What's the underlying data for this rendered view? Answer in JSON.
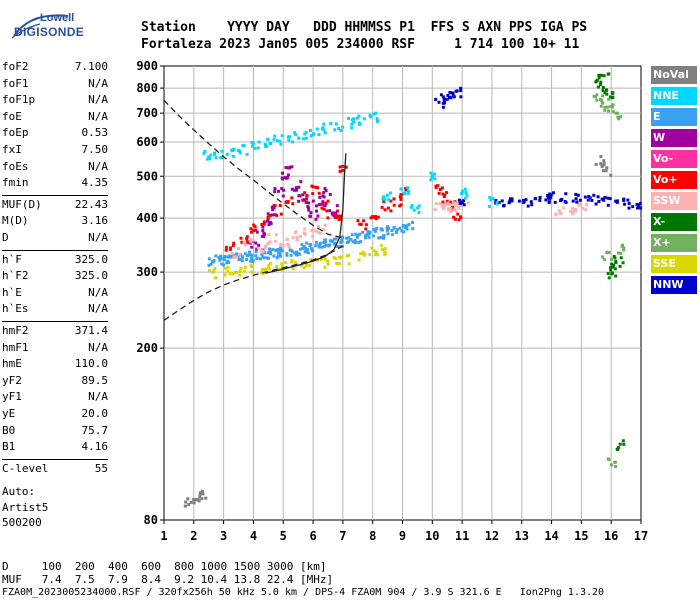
{
  "logo": {
    "top": "Lowell",
    "main": "DIGISONDE"
  },
  "header": {
    "row1": "Station    YYYY DAY   DDD HHMMSS P1  FFS S AXN PPS IGA PS",
    "row2": "Fortaleza 2023 Jan05 005 234000 RSF     1 714 100 10+ 11"
  },
  "parameters": [
    {
      "name": "foF2",
      "value": "7.100"
    },
    {
      "name": "foF1",
      "value": "N/A"
    },
    {
      "name": "foF1p",
      "value": "N/A"
    },
    {
      "name": "foE",
      "value": "N/A"
    },
    {
      "name": "foEp",
      "value": "0.53"
    },
    {
      "name": "fxI",
      "value": "7.50"
    },
    {
      "name": "foEs",
      "value": "N/A"
    },
    {
      "name": "fmin",
      "value": "4.35"
    },
    {
      "name": "MUF(D)",
      "value": "22.43"
    },
    {
      "name": "M(D)",
      "value": "3.16"
    },
    {
      "name": "D",
      "value": "N/A"
    },
    {
      "name": "h`F",
      "value": "325.0"
    },
    {
      "name": "h`F2",
      "value": "325.0"
    },
    {
      "name": "h`E",
      "value": "N/A"
    },
    {
      "name": "h`Es",
      "value": "N/A"
    },
    {
      "name": "hmF2",
      "value": "371.4"
    },
    {
      "name": "hmF1",
      "value": "N/A"
    },
    {
      "name": "hmE",
      "value": "110.0"
    },
    {
      "name": "yF2",
      "value": "89.5"
    },
    {
      "name": "yF1",
      "value": "N/A"
    },
    {
      "name": "yE",
      "value": "20.0"
    },
    {
      "name": "B0",
      "value": "75.7"
    },
    {
      "name": "B1",
      "value": "4.16"
    },
    {
      "name": "C-level",
      "value": "55"
    }
  ],
  "autoscaling": {
    "line1": "Auto:",
    "line2": "Artist5",
    "line3": "500200"
  },
  "legend": [
    {
      "label": "NoVal",
      "color": "#808080"
    },
    {
      "label": "NNE",
      "color": "#00d8ff"
    },
    {
      "label": "E",
      "color": "#3aa0f0"
    },
    {
      "label": "W",
      "color": "#a000a0"
    },
    {
      "label": "Vo-",
      "color": "#ff30a0"
    },
    {
      "label": "Vo+",
      "color": "#ff0000"
    },
    {
      "label": "SSW",
      "color": "#ffb0b0"
    },
    {
      "label": "X-",
      "color": "#007800"
    },
    {
      "label": "X+",
      "color": "#70b060"
    },
    {
      "label": "SSE",
      "color": "#d8d800"
    },
    {
      "label": "NNW",
      "color": "#0000c8"
    }
  ],
  "footer": {
    "row1": "D     100  200  400  600  800 1000 1500 3000 [km]",
    "row2": "MUF   7.4  7.5  7.9  8.4  9.2 10.4 13.8 22.4 [MHz]",
    "row3": "FZA0M_2023005234000.RSF / 320fx256h 50 kHz 5.0 km / DPS-4 FZA0M 904 / 3.9 S 321.6 E   Ion2Png 1.3.20"
  },
  "chart_data": {
    "type": "scatter",
    "xlim": [
      1,
      17
    ],
    "ylim": [
      80,
      900
    ],
    "x_ticks": [
      1,
      2,
      3,
      4,
      5,
      6,
      7,
      8,
      9,
      10,
      11,
      12,
      13,
      14,
      15,
      16,
      17
    ],
    "y_ticks": [
      80,
      200,
      300,
      400,
      500,
      600,
      700,
      800,
      900
    ],
    "grid": true,
    "y_scale": "log",
    "legend_position": "right",
    "curves": [
      {
        "style": "dashed",
        "points": [
          [
            1,
            750
          ],
          [
            1.5,
            690
          ],
          [
            2,
            640
          ],
          [
            2.5,
            595
          ],
          [
            3,
            555
          ],
          [
            3.5,
            520
          ],
          [
            4,
            490
          ],
          [
            4.5,
            460
          ],
          [
            5,
            432
          ],
          [
            5.5,
            407
          ],
          [
            6,
            385
          ],
          [
            6.5,
            367
          ],
          [
            7,
            360
          ]
        ]
      },
      {
        "style": "dashed",
        "points": [
          [
            1,
            232
          ],
          [
            1.5,
            245
          ],
          [
            2,
            258
          ],
          [
            2.5,
            270
          ],
          [
            3,
            280
          ],
          [
            3.5,
            288
          ],
          [
            4,
            295
          ],
          [
            4.5,
            301
          ],
          [
            5,
            307
          ],
          [
            5.5,
            313
          ],
          [
            6,
            320
          ],
          [
            6.5,
            330
          ],
          [
            7,
            345
          ]
        ]
      },
      {
        "style": "solid",
        "points": [
          [
            4.4,
            298
          ],
          [
            5,
            305
          ],
          [
            5.5,
            311
          ],
          [
            6,
            318
          ],
          [
            6.4,
            326
          ],
          [
            6.7,
            338
          ],
          [
            6.9,
            362
          ],
          [
            7,
            420
          ],
          [
            7.05,
            500
          ],
          [
            7.1,
            565
          ]
        ]
      }
    ],
    "traces": [
      {
        "color": "#3aa0f0",
        "x": [
          2.6,
          2.8,
          3.0,
          3.2,
          3.4,
          3.6,
          3.8,
          4.0,
          4.2,
          4.4,
          4.6,
          4.8,
          5.0,
          5.2,
          5.4,
          5.6,
          5.8,
          6.0,
          6.2,
          6.4,
          6.6,
          6.8,
          7.0,
          7.2,
          7.4,
          7.6,
          7.8,
          8.0,
          8.2,
          8.4,
          8.6,
          8.8,
          9.0,
          9.2
        ],
        "y": [
          320,
          322,
          324,
          325,
          326,
          327,
          328,
          329,
          331,
          332,
          333,
          334,
          336,
          338,
          340,
          342,
          344,
          346,
          348,
          350,
          352,
          355,
          358,
          360,
          362,
          365,
          367,
          370,
          372,
          375,
          378,
          380,
          382,
          385
        ]
      },
      {
        "color": "#ff0000",
        "x": [
          3.2,
          3.6,
          4.0,
          4.4,
          4.8,
          5.2,
          5.6,
          6.0,
          6.3,
          6.6,
          6.9,
          7.0,
          7.6,
          8.0,
          8.4,
          8.8,
          9.0,
          10.2,
          10.4,
          10.6,
          10.8
        ],
        "y": [
          345,
          360,
          380,
          400,
          420,
          440,
          450,
          470,
          430,
          410,
          400,
          520,
          390,
          410,
          430,
          440,
          460,
          470,
          450,
          430,
          410
        ]
      },
      {
        "color": "#a000a0",
        "x": [
          4.0,
          4.2,
          4.4,
          4.6,
          4.8,
          5.0,
          5.2,
          5.4,
          5.6,
          5.8,
          6.0,
          6.2,
          6.4,
          6.6
        ],
        "y": [
          350,
          370,
          390,
          420,
          460,
          500,
          520,
          480,
          450,
          430,
          410,
          440,
          460,
          420
        ]
      },
      {
        "color": "#ffb0b0",
        "x": [
          3.4,
          3.8,
          4.2,
          4.6,
          5.0,
          5.4,
          5.8,
          6.2,
          10.2,
          10.4,
          10.6,
          10.8,
          11.0,
          14.2,
          14.6,
          15.0
        ],
        "y": [
          335,
          350,
          345,
          360,
          355,
          365,
          372,
          380,
          430,
          428,
          425,
          430,
          432,
          420,
          418,
          425
        ]
      },
      {
        "color": "#d8d800",
        "x": [
          2.6,
          3.0,
          3.4,
          3.8,
          4.2,
          4.6,
          5.0,
          5.4,
          5.8,
          6.2,
          6.6,
          7.0,
          7.6,
          8.0,
          8.4
        ],
        "y": [
          300,
          302,
          304,
          306,
          308,
          310,
          312,
          314,
          316,
          318,
          320,
          322,
          330,
          335,
          340
        ]
      },
      {
        "color": "#0000c8",
        "x": [
          10.2,
          10.4,
          10.6,
          10.8,
          11.0,
          12.2,
          12.6,
          13.0,
          13.4,
          13.8,
          14.0,
          14.4,
          14.8,
          15.2,
          15.6,
          16.0,
          16.4,
          16.8
        ],
        "y": [
          740,
          760,
          775,
          790,
          440,
          435,
          438,
          440,
          442,
          445,
          450,
          448,
          446,
          444,
          440,
          438,
          436,
          434
        ]
      },
      {
        "color": "#00d8ff",
        "x": [
          2.4,
          2.8,
          3.2,
          3.6,
          4.0,
          4.4,
          4.8,
          5.2,
          5.6,
          6.0,
          6.4,
          6.8,
          7.2,
          7.6,
          8.0,
          8.4,
          9.0,
          9.4,
          10.0,
          11.0,
          12.0
        ],
        "y": [
          560,
          565,
          575,
          580,
          590,
          600,
          610,
          620,
          630,
          640,
          650,
          660,
          670,
          680,
          690,
          450,
          470,
          420,
          500,
          460,
          440
        ]
      },
      {
        "color": "#007800",
        "x": [
          15.6,
          15.8,
          15.9,
          16.0,
          16.1,
          16.2,
          15.7,
          16.3
        ],
        "y": [
          820,
          800,
          780,
          300,
          310,
          320,
          860,
          120
        ]
      },
      {
        "color": "#70b060",
        "x": [
          15.5,
          15.7,
          15.9,
          16.1,
          16.3,
          15.8,
          16.0
        ],
        "y": [
          760,
          740,
          720,
          700,
          340,
          330,
          110
        ]
      },
      {
        "color": "#808080",
        "x": [
          2.0,
          2.2,
          1.8,
          15.6,
          15.8
        ],
        "y": [
          90,
          92,
          88,
          550,
          520
        ]
      }
    ]
  }
}
